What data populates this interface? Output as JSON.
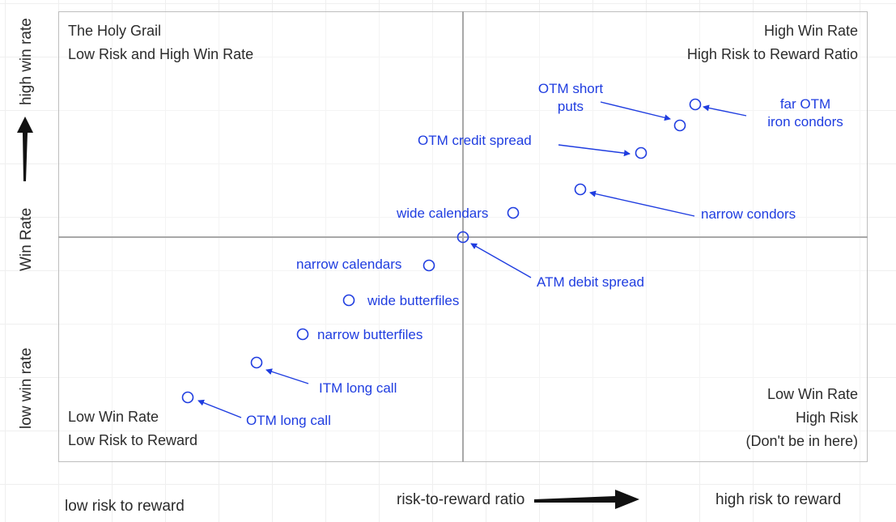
{
  "quadrants": {
    "top_left": {
      "line1": "The Holy Grail",
      "line2": "Low Risk and High Win Rate"
    },
    "top_right": {
      "line1": "High Win Rate",
      "line2": "High Risk to Reward Ratio"
    },
    "bottom_left": {
      "line1": "Low Win Rate",
      "line2": "Low Risk to Reward"
    },
    "bottom_right": {
      "line1": "Low Win Rate",
      "line2": "High Risk",
      "line3": "(Don't be in here)"
    }
  },
  "axes": {
    "y_high": "high win rate",
    "y_mid": "Win Rate",
    "y_low": "low win rate",
    "x_low": "low risk to reward",
    "x_mid": "risk-to-reward ratio",
    "x_high": "high risk to reward"
  },
  "strategies": {
    "otm_short_puts": {
      "line1": "OTM short",
      "line2": "puts"
    },
    "far_otm_iron_condors": {
      "line1": "far OTM",
      "line2": "iron condors"
    },
    "otm_credit_spread": "OTM credit spread",
    "narrow_condors": "narrow condors",
    "wide_calendars": "wide calendars",
    "atm_debit_spread": "ATM debit spread",
    "narrow_calendars": "narrow calendars",
    "wide_butterfiles": "wide butterfiles",
    "narrow_butterfiles": "narrow butterfiles",
    "itm_long_call": "ITM long call",
    "otm_long_call": "OTM long call"
  },
  "colors": {
    "annotation": "#1f3de0",
    "text": "#2b2b2b",
    "grid_line": "#a8a8a8",
    "arrow": "#111111"
  }
}
